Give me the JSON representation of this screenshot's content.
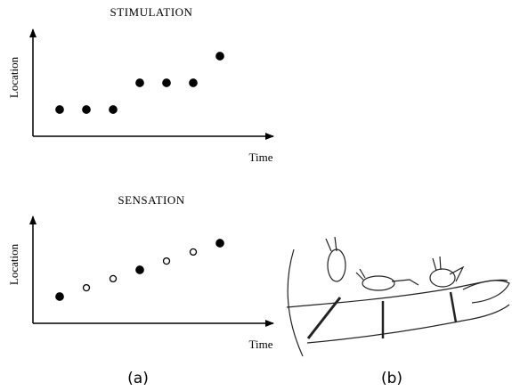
{
  "chart_data": [
    {
      "type": "scatter",
      "title": "STIMULATION",
      "x_label": "Time",
      "y_label": "Location",
      "x": [
        1,
        2,
        3,
        4,
        5,
        6,
        7
      ],
      "values": [
        1,
        1,
        1,
        2,
        2,
        2,
        3
      ],
      "filled": [
        true,
        true,
        true,
        true,
        true,
        true,
        true
      ],
      "xlim": [
        0,
        9
      ],
      "ylim": [
        0,
        4
      ],
      "color": "#000000"
    },
    {
      "type": "scatter",
      "title": "SENSATION",
      "x_label": "Time",
      "y_label": "Location",
      "x": [
        1,
        2,
        3,
        4,
        5,
        6,
        7
      ],
      "values": [
        1,
        1.33,
        1.67,
        2,
        2.33,
        2.67,
        3
      ],
      "filled": [
        true,
        false,
        false,
        true,
        false,
        false,
        true
      ],
      "xlim": [
        0,
        9
      ],
      "ylim": [
        0,
        4
      ],
      "color": "#000000"
    }
  ],
  "captions": [
    "(a)",
    "(b)"
  ]
}
